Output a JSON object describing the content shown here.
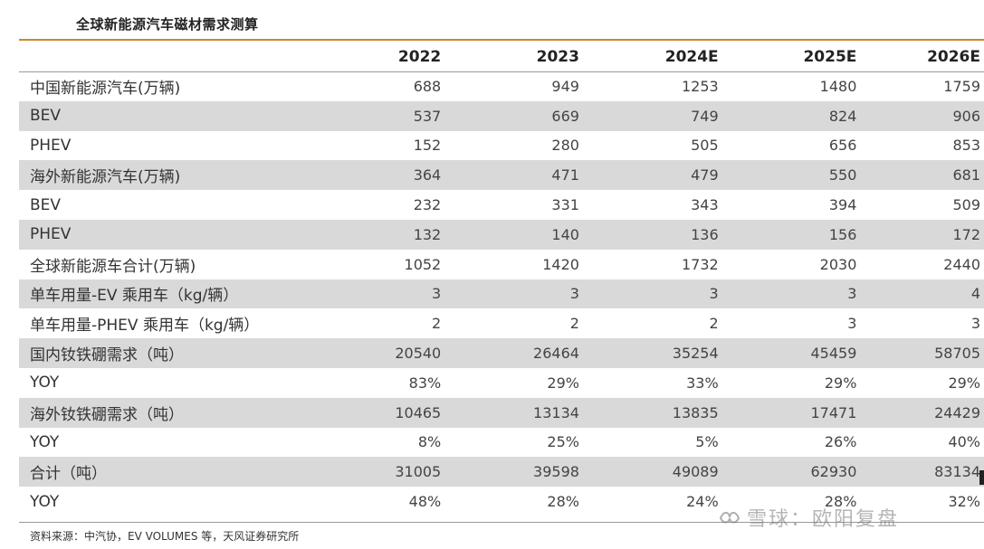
{
  "title": "全球新能源汽车磁材需求测算",
  "columns": [
    "2022",
    "2023",
    "2024E",
    "2025E",
    "2026E"
  ],
  "rows": [
    {
      "label": "中国新能源汽车(万辆)",
      "values": [
        "688",
        "949",
        "1253",
        "1480",
        "1759"
      ],
      "shaded": false
    },
    {
      "label": "BEV",
      "values": [
        "537",
        "669",
        "749",
        "824",
        "906"
      ],
      "shaded": true
    },
    {
      "label": "PHEV",
      "values": [
        "152",
        "280",
        "505",
        "656",
        "853"
      ],
      "shaded": false
    },
    {
      "label": "海外新能源汽车(万辆)",
      "values": [
        "364",
        "471",
        "479",
        "550",
        "681"
      ],
      "shaded": true
    },
    {
      "label": "BEV",
      "values": [
        "232",
        "331",
        "343",
        "394",
        "509"
      ],
      "shaded": false
    },
    {
      "label": "PHEV",
      "values": [
        "132",
        "140",
        "136",
        "156",
        "172"
      ],
      "shaded": true
    },
    {
      "label": "全球新能源车合计(万辆)",
      "values": [
        "1052",
        "1420",
        "1732",
        "2030",
        "2440"
      ],
      "shaded": false
    },
    {
      "label": "单车用量-EV 乘用车（kg/辆）",
      "values": [
        "3",
        "3",
        "3",
        "3",
        "4"
      ],
      "shaded": true
    },
    {
      "label": "单车用量-PHEV 乘用车（kg/辆）",
      "values": [
        "2",
        "2",
        "2",
        "3",
        "3"
      ],
      "shaded": false
    },
    {
      "label": "国内钕铁硼需求（吨）",
      "values": [
        "20540",
        "26464",
        "35254",
        "45459",
        "58705"
      ],
      "shaded": true
    },
    {
      "label": "YOY",
      "values": [
        "83%",
        "29%",
        "33%",
        "29%",
        "29%"
      ],
      "shaded": false
    },
    {
      "label": "海外钕铁硼需求（吨）",
      "values": [
        "10465",
        "13134",
        "13835",
        "17471",
        "24429"
      ],
      "shaded": true
    },
    {
      "label": "YOY",
      "values": [
        "8%",
        "25%",
        "5%",
        "26%",
        "40%"
      ],
      "shaded": false
    },
    {
      "label": "合计（吨）",
      "values": [
        "31005",
        "39598",
        "49089",
        "62930",
        "83134"
      ],
      "shaded": true
    },
    {
      "label": "YOY",
      "values": [
        "48%",
        "28%",
        "24%",
        "28%",
        "32%"
      ],
      "shaded": false
    }
  ],
  "source": "资料来源：中汽协，EV VOLUMES 等，天风证券研究所",
  "watermark": "雪球：欧阳复盘",
  "colors": {
    "accent_rule": "#c98a2a",
    "shaded_row": "#d9d9d9"
  }
}
